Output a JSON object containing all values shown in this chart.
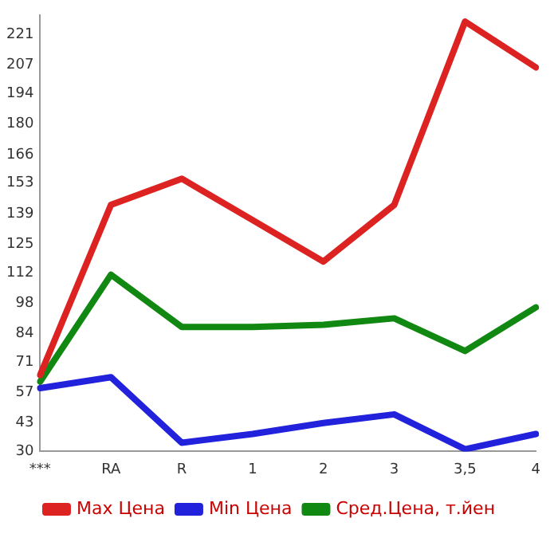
{
  "chart_data": {
    "type": "line",
    "categories": [
      "***",
      "RA",
      "R",
      "1",
      "2",
      "3",
      "3,5",
      "4"
    ],
    "series": [
      {
        "name": "Max Цена",
        "color": "#dd2222",
        "values": [
          65,
          143,
          155,
          136,
          117,
          143,
          227,
          206
        ]
      },
      {
        "name": "Min Цена",
        "color": "#2222dd",
        "values": [
          59,
          64,
          34,
          38,
          43,
          47,
          31,
          38
        ]
      },
      {
        "name": "Сред.Цена, т.йен",
        "color": "#118811",
        "values": [
          62,
          111,
          87,
          87,
          88,
          91,
          76,
          96
        ]
      }
    ],
    "ylim": [
      30,
      230
    ],
    "yticks": [
      30,
      43,
      57,
      71,
      84,
      98,
      112,
      125,
      139,
      153,
      166,
      180,
      194,
      207,
      221
    ],
    "grid": false,
    "legend": "bottom",
    "marker": "none",
    "line_style": "solid"
  }
}
